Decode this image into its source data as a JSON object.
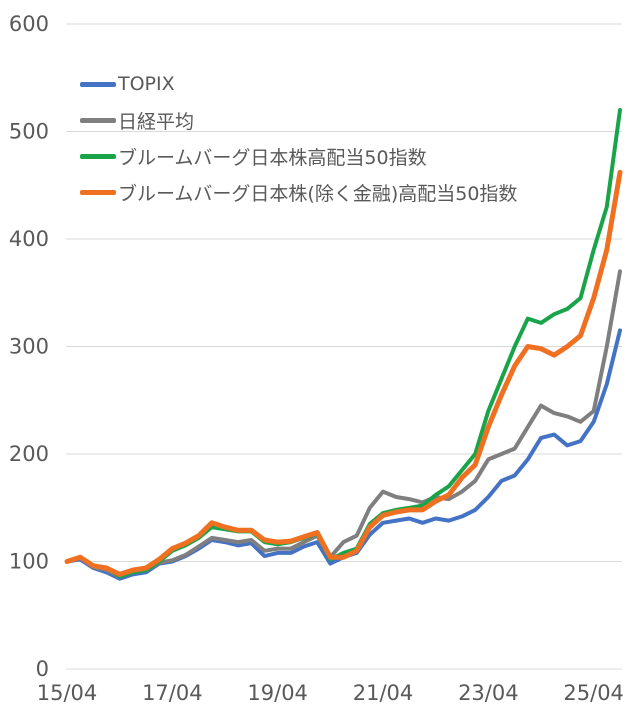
{
  "chart_data": {
    "type": "line",
    "title": "",
    "xlabel": "",
    "ylabel": "",
    "ylim": [
      0,
      600
    ],
    "yticks": [
      0,
      100,
      200,
      300,
      400,
      500,
      600
    ],
    "xtick_labels": [
      "15/04",
      "17/04",
      "19/04",
      "21/04",
      "23/04",
      "25/04"
    ],
    "grid": "horizontal",
    "legend_position": "upper-left-inside",
    "x": [
      "15/04",
      "15/07",
      "15/10",
      "16/01",
      "16/04",
      "16/07",
      "16/10",
      "17/01",
      "17/04",
      "17/07",
      "17/10",
      "18/01",
      "18/04",
      "18/07",
      "18/10",
      "19/01",
      "19/04",
      "19/07",
      "19/10",
      "20/01",
      "20/04",
      "20/07",
      "20/10",
      "21/01",
      "21/04",
      "21/07",
      "21/10",
      "22/01",
      "22/04",
      "22/07",
      "22/10",
      "23/01",
      "23/04",
      "23/07",
      "23/10",
      "24/01",
      "24/04",
      "24/07",
      "24/10",
      "25/01",
      "25/04",
      "25/07",
      "25/10"
    ],
    "series": [
      {
        "name": "TOPIX",
        "color": "#4472C4",
        "values": [
          100,
          102,
          94,
          90,
          84,
          88,
          90,
          98,
          100,
          105,
          112,
          120,
          118,
          115,
          117,
          105,
          108,
          108,
          114,
          118,
          98,
          104,
          108,
          125,
          136,
          138,
          140,
          136,
          140,
          138,
          142,
          148,
          160,
          175,
          180,
          195,
          215,
          218,
          208,
          212,
          230,
          265,
          315
        ]
      },
      {
        "name": "日経平均",
        "color": "#7F7F7F",
        "values": [
          100,
          104,
          95,
          92,
          86,
          90,
          92,
          99,
          101,
          106,
          114,
          122,
          120,
          118,
          120,
          110,
          112,
          112,
          118,
          124,
          104,
          118,
          124,
          150,
          165,
          160,
          158,
          155,
          160,
          158,
          165,
          175,
          195,
          200,
          205,
          225,
          245,
          238,
          235,
          230,
          240,
          300,
          370
        ]
      },
      {
        "name": "ブルームバーグ日本株高配当50指数",
        "color": "#19A44A",
        "values": [
          100,
          104,
          96,
          94,
          86,
          90,
          92,
          100,
          110,
          115,
          122,
          132,
          130,
          128,
          128,
          118,
          116,
          118,
          122,
          126,
          102,
          108,
          112,
          135,
          145,
          148,
          150,
          152,
          162,
          170,
          185,
          200,
          240,
          270,
          300,
          326,
          322,
          330,
          335,
          345,
          390,
          430,
          520
        ]
      },
      {
        "name": "ブルームバーグ日本株(除く金融)高配当50指数",
        "color": "#F07021",
        "values": [
          100,
          104,
          96,
          94,
          88,
          92,
          94,
          102,
          112,
          117,
          124,
          136,
          132,
          129,
          129,
          120,
          118,
          119,
          123,
          127,
          104,
          104,
          110,
          132,
          143,
          146,
          148,
          148,
          156,
          162,
          178,
          190,
          225,
          255,
          282,
          300,
          298,
          292,
          300,
          310,
          345,
          390,
          462
        ]
      }
    ]
  },
  "legend": {
    "items": [
      {
        "label": "TOPIX",
        "color": "#4472C4"
      },
      {
        "label": "日経平均",
        "color": "#7F7F7F"
      },
      {
        "label": "ブルームバーグ日本株高配当50指数",
        "color": "#19A44A"
      },
      {
        "label": "ブルームバーグ日本株(除く金融)高配当50指数",
        "color": "#F07021"
      }
    ]
  }
}
